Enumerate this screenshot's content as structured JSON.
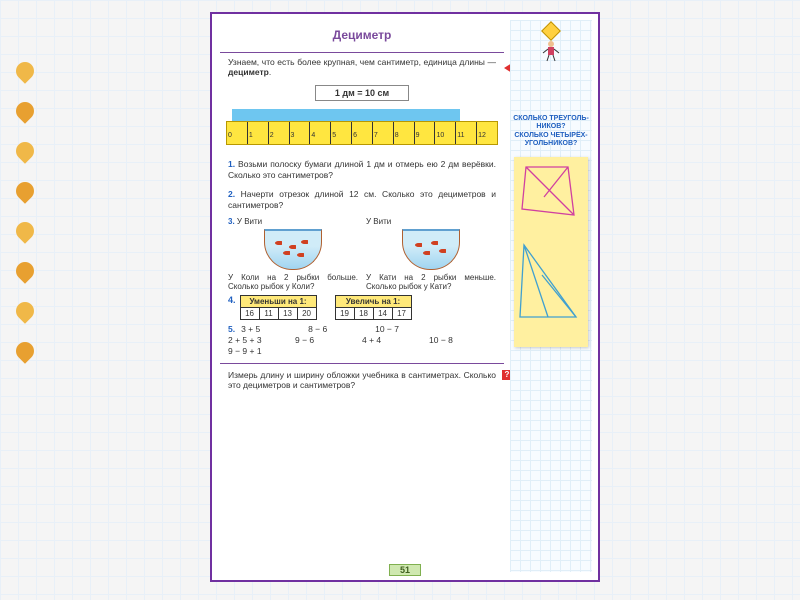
{
  "title": "Дециметр",
  "intro": "Узнаем, что есть более крупная, чем сантиметр, единица длины — <b>дециметр</b>.",
  "formula": "1 дм = 10 см",
  "ruler": {
    "ticks": [
      "0",
      "1",
      "2",
      "3",
      "4",
      "5",
      "6",
      "7",
      "8",
      "9",
      "10",
      "11",
      "12"
    ]
  },
  "problems": {
    "p1": "Возьми полоску бумаги длиной 1 дм и отмерь ею 2 дм верёвки. Сколько это сантиметров?",
    "p2": "Начерти отрезок длиной 12 см. Сколько это дециметров и сантиметров?",
    "p3": {
      "left_top": "У Вити",
      "left_bot": "У Коли на 2 рыбки больше. Сколько рыбок у Коли?",
      "right_top": "У Вити",
      "right_bot": "У Кати на 2 рыбки меньше. Сколько рыбок у Кати?"
    },
    "p4": {
      "left_hdr": "Уменьши на 1:",
      "left_vals": [
        "16",
        "11",
        "13",
        "20"
      ],
      "right_hdr": "Увеличь на 1:",
      "right_vals": [
        "19",
        "18",
        "14",
        "17"
      ]
    },
    "p5": [
      "3 + 5",
      "8 − 6",
      "10 − 7",
      "2 + 5 + 3",
      "9 − 6",
      "4 + 4",
      "10 − 8",
      "9 − 9 + 1"
    ]
  },
  "footer": "Измерь длину и ширину обложки учебника в сантиметрах. Сколько это дециметров и сантиметров?",
  "page_num": "51",
  "sidebar": {
    "q1": "СКОЛЬКО ТРЕУГОЛЬ-НИКОВ?",
    "q2": "СКОЛЬКО ЧЕТЫРЁХ-УГОЛЬНИКОВ?"
  },
  "deco_colors": [
    "#f0b848",
    "#e8a030",
    "#f0b848",
    "#e8a030",
    "#f0b848",
    "#e8a030",
    "#f0b848",
    "#e8a030"
  ],
  "colors": {
    "purple": "#7a4a9c",
    "yellow": "#ffe640",
    "cyan": "#6ec6f0",
    "red": "#e03030",
    "pink_line": "#d040a0",
    "blue_line": "#40a0d0"
  }
}
